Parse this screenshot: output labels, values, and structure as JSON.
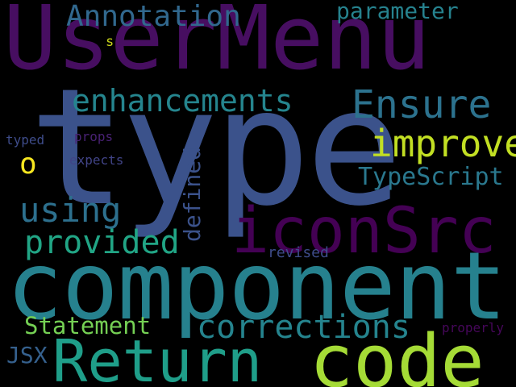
{
  "cloud": {
    "background": "#000000",
    "words": {
      "usermenu": {
        "text": "UserMenu",
        "color": "#470e61"
      },
      "type": {
        "text": "type",
        "color": "#3b528b"
      },
      "annotation": {
        "text": "Annotation",
        "color": "#31688e"
      },
      "parameter": {
        "text": "parameter",
        "color": "#26828e"
      },
      "s": {
        "text": "s",
        "color": "#c8d41a"
      },
      "enhance": {
        "text": "enhancements",
        "color": "#25858e"
      },
      "ensure": {
        "text": "Ensure",
        "color": "#2c728e"
      },
      "improve": {
        "text": "improve",
        "color": "#c2df23"
      },
      "o": {
        "text": "o",
        "color": "#f6e620"
      },
      "typed": {
        "text": "typed",
        "color": "#3e4c8a"
      },
      "props": {
        "text": "props",
        "color": "#482173"
      },
      "expects": {
        "text": "expects",
        "color": "#414487"
      },
      "defined": {
        "text": "defined",
        "color": "#3b528b"
      },
      "typescript": {
        "text": "TypeScript",
        "color": "#2a788e"
      },
      "using": {
        "text": "using",
        "color": "#2d708e"
      },
      "iconsrc": {
        "text": "iconSrc",
        "color": "#440154"
      },
      "provided": {
        "text": "provided",
        "color": "#21a585"
      },
      "revised": {
        "text": "revised",
        "color": "#3e4c8a"
      },
      "component": {
        "text": "component",
        "color": "#26818e"
      },
      "statement": {
        "text": "Statement",
        "color": "#75d054"
      },
      "corrections": {
        "text": "corrections",
        "color": "#25848e"
      },
      "properly": {
        "text": "properly",
        "color": "#46075a"
      },
      "jsx": {
        "text": "JSX",
        "color": "#35608d"
      },
      "return": {
        "text": "Return",
        "color": "#1f9e89"
      },
      "code": {
        "text": "code",
        "color": "#a5db36"
      }
    }
  }
}
